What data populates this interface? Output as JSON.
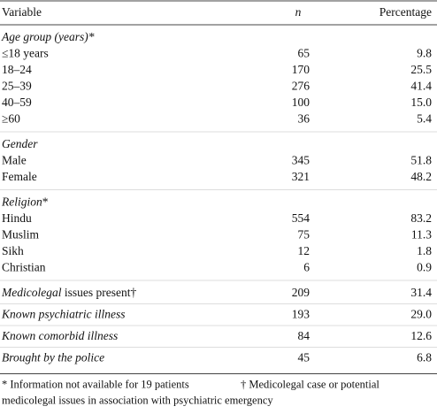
{
  "header": {
    "variable": "Variable",
    "n": "n",
    "percentage": "Percentage"
  },
  "groups": [
    {
      "label": [
        {
          "text": "Age group (years)*",
          "italic": true
        }
      ],
      "rows": [
        [
          "≤18 years",
          "65",
          "9.8"
        ],
        [
          "18–24",
          "170",
          "25.5"
        ],
        [
          "25–39",
          "276",
          "41.4"
        ],
        [
          "40–59",
          "100",
          "15.0"
        ],
        [
          "≥60",
          "36",
          "5.4"
        ]
      ]
    },
    {
      "label": [
        {
          "text": "Gender",
          "italic": true
        }
      ],
      "rows": [
        [
          "Male",
          "345",
          "51.8"
        ],
        [
          "Female",
          "321",
          "48.2"
        ]
      ]
    },
    {
      "label": [
        {
          "text": "Religion",
          "italic": true
        },
        {
          "text": "*",
          "italic": false
        }
      ],
      "rows": [
        [
          "Hindu",
          "554",
          "83.2"
        ],
        [
          "Muslim",
          "75",
          "11.3"
        ],
        [
          "Sikh",
          "12",
          "1.8"
        ],
        [
          "Christian",
          "6",
          "0.9"
        ]
      ]
    },
    {
      "label": [
        {
          "text": "Medicolegal",
          "italic": true
        },
        {
          "text": " issues present†",
          "italic": false
        }
      ],
      "n": "209",
      "percentage": "31.4"
    },
    {
      "label": [
        {
          "text": "Known psychiatric illness",
          "italic": true
        }
      ],
      "n": "193",
      "percentage": "29.0"
    },
    {
      "label": [
        {
          "text": "Known comorbid illness",
          "italic": true
        }
      ],
      "n": "84",
      "percentage": "12.6"
    },
    {
      "label": [
        {
          "text": "Brought by the police",
          "italic": true
        }
      ],
      "n": "45",
      "percentage": "6.8"
    }
  ],
  "footnotes": [
    "* Information not available for 19 patients",
    "† Medicolegal case or potential",
    "medicolegal issues in association with psychiatric emergency"
  ]
}
